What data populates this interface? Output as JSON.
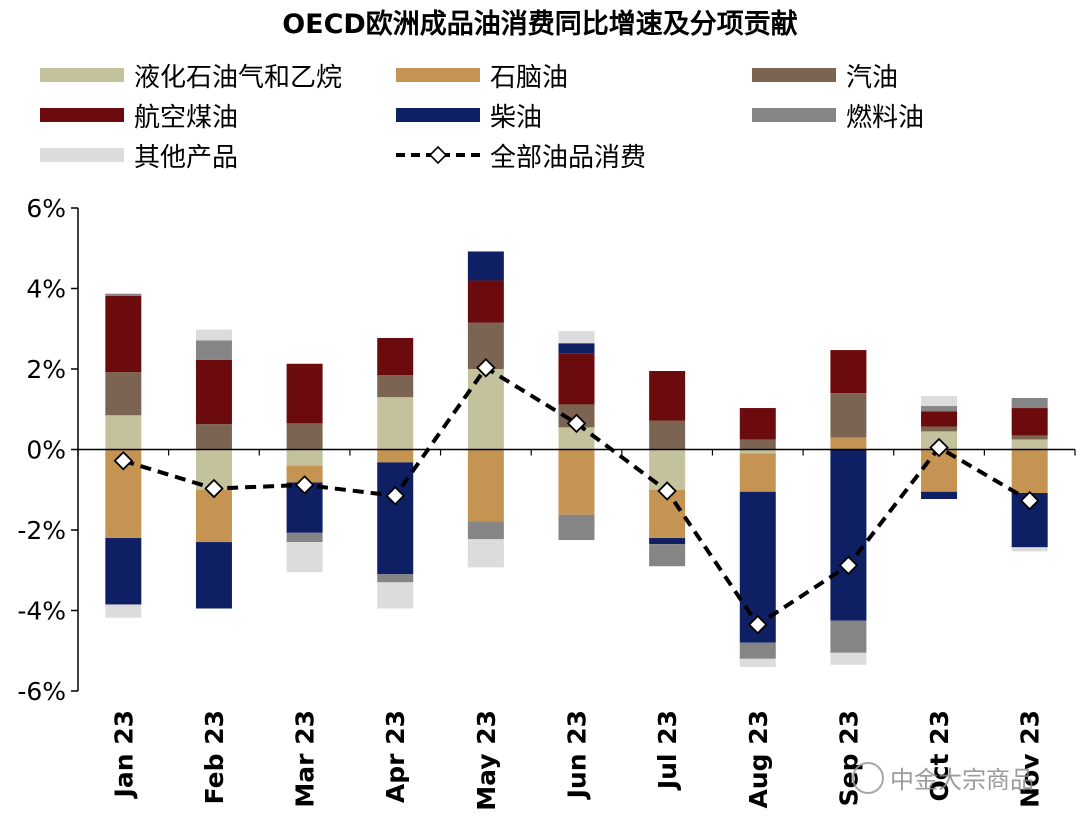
{
  "title": "OECD欧洲成品油消费同比增速及分项贡献",
  "watermark": "中金大宗商品",
  "chart_data": {
    "type": "bar",
    "stacked": true,
    "title": "OECD欧洲成品油消费同比增速及分项贡献",
    "categories": [
      "Jan 23",
      "Feb 23",
      "Mar 23",
      "Apr 23",
      "May 23",
      "Jun 23",
      "Jul 23",
      "Aug 23",
      "Sep 23",
      "Oct 23",
      "Nov 23"
    ],
    "ylim": [
      -6,
      6
    ],
    "yticks": [
      -6,
      -4,
      -2,
      0,
      2,
      4,
      6
    ],
    "ytick_labels": [
      "-6%",
      "-4%",
      "-2%",
      "0%",
      "2%",
      "4%",
      "6%"
    ],
    "legend_position": "top",
    "series": [
      {
        "name": "液化石油气和乙烷",
        "color": "#c4c29d",
        "values": [
          0.85,
          -1.0,
          -0.4,
          1.3,
          2.0,
          0.55,
          -1.0,
          -0.1,
          0.0,
          0.45,
          0.25
        ]
      },
      {
        "name": "石脑油",
        "color": "#c69452",
        "values": [
          -2.2,
          -1.3,
          -0.42,
          -0.32,
          -1.78,
          -1.62,
          -1.2,
          -0.95,
          0.3,
          -1.05,
          -1.08
        ]
      },
      {
        "name": "汽油",
        "color": "#7b6552",
        "values": [
          1.07,
          0.63,
          0.65,
          0.55,
          1.15,
          0.57,
          0.72,
          0.25,
          1.1,
          0.12,
          0.1
        ]
      },
      {
        "name": "航空煤油",
        "color": "#6b0b0e",
        "values": [
          1.9,
          1.6,
          1.48,
          0.92,
          1.05,
          1.27,
          1.23,
          0.78,
          1.07,
          0.38,
          0.68
        ]
      },
      {
        "name": "柴油",
        "color": "#0e1f63",
        "values": [
          -1.65,
          -1.65,
          -1.25,
          -2.78,
          0.72,
          0.25,
          -0.15,
          -3.75,
          -4.25,
          -0.18,
          -1.35
        ]
      },
      {
        "name": "燃料油",
        "color": "#858585",
        "values": [
          0.05,
          0.48,
          -0.23,
          -0.2,
          -0.45,
          -0.63,
          -0.55,
          -0.4,
          -0.8,
          0.13,
          0.25
        ]
      },
      {
        "name": "其他产品",
        "color": "#dcdcdc",
        "values": [
          -0.33,
          0.27,
          -0.75,
          -0.65,
          -0.7,
          0.3,
          0.0,
          -0.2,
          -0.3,
          0.25,
          -0.1
        ]
      }
    ],
    "line_series": {
      "name": "全部油品消费",
      "values": [
        -0.28,
        -0.97,
        -0.88,
        -1.15,
        2.03,
        0.65,
        -1.03,
        -4.35,
        -2.88,
        0.05,
        -1.27
      ]
    }
  }
}
